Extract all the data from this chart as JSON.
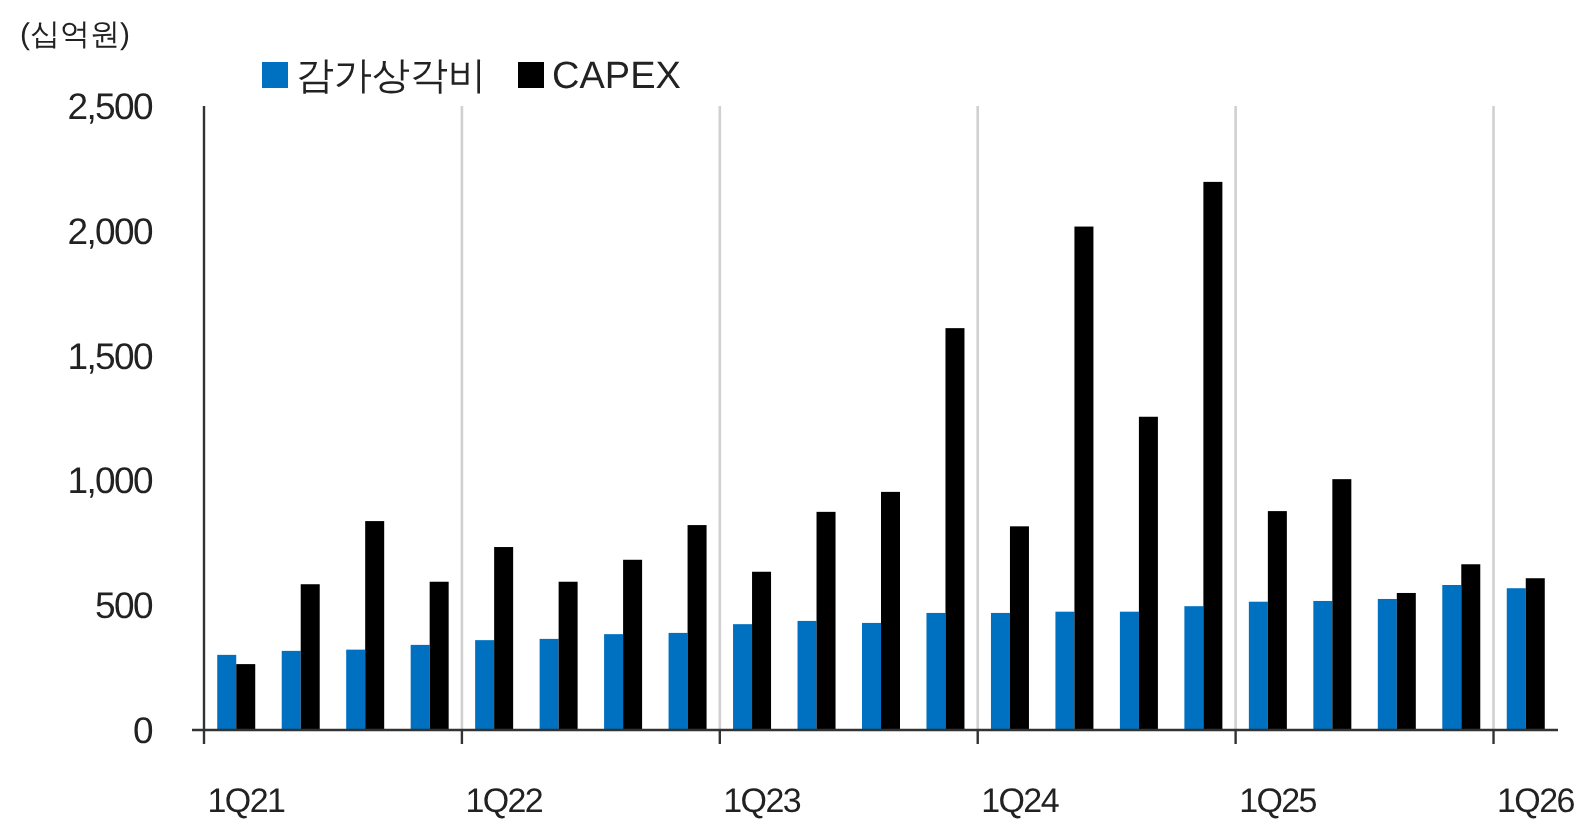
{
  "chart_data": {
    "type": "bar",
    "ylabel": "(십억원)",
    "categories": [
      "1Q21",
      null,
      null,
      null,
      "1Q22",
      null,
      null,
      null,
      "1Q23",
      null,
      null,
      null,
      "1Q24",
      null,
      null,
      null,
      "1Q25",
      null,
      null,
      null,
      "1Q26"
    ],
    "series": [
      {
        "name": "감가상각비",
        "color": "#0070c0",
        "values": [
          301,
          317,
          322,
          341,
          360,
          365,
          384,
          389,
          424,
          437,
          429,
          469,
          469,
          474,
          474,
          496,
          514,
          517,
          525,
          581,
          568
        ]
      },
      {
        "name": "CAPEX",
        "color": "#000000",
        "values": [
          264,
          584,
          837,
          594,
          733,
          594,
          682,
          821,
          634,
          874,
          954,
          1610,
          816,
          2017,
          1255,
          2196,
          877,
          1005,
          549,
          664,
          608
        ]
      }
    ],
    "ylim": [
      0,
      2500
    ],
    "yticks": [
      {
        "value": 0,
        "label": "0"
      },
      {
        "value": 500,
        "label": "500"
      },
      {
        "value": 1000,
        "label": "1,000"
      },
      {
        "value": 1500,
        "label": "1,500"
      },
      {
        "value": 2000,
        "label": "2,000"
      },
      {
        "value": 2500,
        "label": "2,500"
      }
    ],
    "grid": "x",
    "legend": "top"
  }
}
